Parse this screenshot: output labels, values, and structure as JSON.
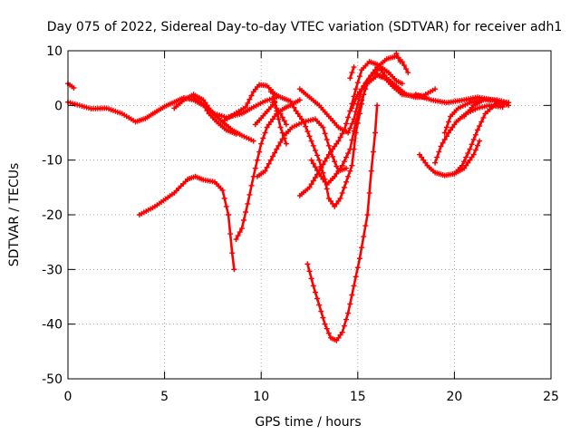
{
  "chart_data": {
    "type": "scatter",
    "title": "Day 075 of 2022, Sidereal Day-to-day VTEC variation (SDTVAR) for receiver adh1",
    "xlabel": "GPS time / hours",
    "ylabel": "SDTVAR / TECUs",
    "xlim": [
      0,
      25
    ],
    "ylim": [
      -50,
      10
    ],
    "xticks": [
      0,
      5,
      10,
      15,
      20,
      25
    ],
    "yticks": [
      10,
      0,
      -10,
      -20,
      -30,
      -40,
      -50
    ],
    "xtick_labels": [
      "0",
      "5",
      "10",
      "15",
      "20",
      "25"
    ],
    "ytick_labels": [
      "10",
      "0",
      "-10",
      "-20",
      "-30",
      "-40",
      "-50"
    ],
    "grid": true,
    "legend": "none",
    "marker": "plus",
    "color": "#ff0000",
    "series": [
      {
        "points": [
          [
            0.0,
            4.0
          ],
          [
            0.3,
            3.2
          ]
        ]
      },
      {
        "points": [
          [
            0.0,
            0.6
          ],
          [
            0.6,
            0.0
          ],
          [
            1.2,
            -0.6
          ],
          [
            2.0,
            -0.5
          ],
          [
            2.8,
            -1.5
          ],
          [
            3.5,
            -3.0
          ],
          [
            4.0,
            -2.4
          ],
          [
            4.5,
            -1.3
          ],
          [
            5.0,
            -0.2
          ],
          [
            5.5,
            0.6
          ],
          [
            6.0,
            1.4
          ],
          [
            6.5,
            1.0
          ],
          [
            7.0,
            0.0
          ],
          [
            7.6,
            -1.5
          ],
          [
            8.2,
            -2.2
          ],
          [
            9.0,
            -1.5
          ],
          [
            9.5,
            -0.5
          ],
          [
            10.2,
            0.8
          ],
          [
            10.8,
            1.5
          ]
        ]
      }
    ],
    "series_more": [
      {
        "points": [
          [
            3.7,
            -20.0
          ],
          [
            4.5,
            -18.5
          ],
          [
            5.5,
            -16.0
          ],
          [
            6.2,
            -13.5
          ],
          [
            6.6,
            -13.0
          ],
          [
            7.0,
            -13.6
          ],
          [
            7.6,
            -14.0
          ],
          [
            8.0,
            -15.5
          ],
          [
            8.3,
            -20.0
          ],
          [
            8.5,
            -27.0
          ],
          [
            8.6,
            -30.0
          ]
        ]
      },
      {
        "points": [
          [
            8.7,
            -24.5
          ],
          [
            9.0,
            -22.5
          ],
          [
            9.3,
            -18.0
          ],
          [
            9.6,
            -13.0
          ],
          [
            9.8,
            -10.0
          ],
          [
            10.0,
            -7.0
          ],
          [
            10.3,
            -4.0
          ],
          [
            10.8,
            -1.5
          ],
          [
            11.2,
            -0.5
          ],
          [
            11.5,
            0.0
          ],
          [
            12.0,
            1.0
          ]
        ]
      },
      {
        "points": [
          [
            5.5,
            -0.5
          ],
          [
            6.0,
            1.0
          ],
          [
            6.5,
            2.0
          ],
          [
            7.0,
            1.0
          ],
          [
            7.5,
            -1.5
          ],
          [
            8.0,
            -3.0
          ],
          [
            8.5,
            -4.5
          ],
          [
            9.0,
            -5.5
          ],
          [
            9.6,
            -6.5
          ]
        ]
      },
      {
        "points": [
          [
            6.5,
            1.5
          ],
          [
            7.0,
            0.2
          ],
          [
            7.3,
            -1.5
          ],
          [
            7.7,
            -3.0
          ],
          [
            8.2,
            -4.5
          ],
          [
            8.7,
            -5.2
          ]
        ]
      },
      {
        "points": [
          [
            8.0,
            -3.0
          ],
          [
            8.6,
            -1.6
          ],
          [
            9.2,
            -0.3
          ],
          [
            9.6,
            2.5
          ],
          [
            9.9,
            3.8
          ],
          [
            10.3,
            3.6
          ],
          [
            10.6,
            2.5
          ],
          [
            10.8,
            -1.0
          ],
          [
            11.0,
            -4.0
          ],
          [
            11.3,
            -7.0
          ]
        ]
      },
      {
        "points": [
          [
            9.8,
            -13.0
          ],
          [
            10.2,
            -12.0
          ],
          [
            10.5,
            -10.0
          ],
          [
            10.8,
            -8.0
          ],
          [
            11.2,
            -5.5
          ],
          [
            11.6,
            -4.0
          ],
          [
            12.2,
            -3.0
          ],
          [
            12.8,
            -2.5
          ],
          [
            13.2,
            -4.0
          ],
          [
            13.6,
            -8.5
          ],
          [
            14.0,
            -12.0
          ],
          [
            14.4,
            -11.5
          ]
        ]
      },
      {
        "points": [
          [
            10.5,
            2.5
          ],
          [
            11.0,
            1.5
          ],
          [
            11.5,
            0.8
          ],
          [
            11.8,
            -1.0
          ],
          [
            12.2,
            -3.0
          ],
          [
            12.6,
            -6.5
          ],
          [
            13.0,
            -10.0
          ],
          [
            13.3,
            -13.5
          ],
          [
            13.5,
            -17.0
          ],
          [
            13.8,
            -18.5
          ],
          [
            14.1,
            -17.0
          ],
          [
            14.4,
            -14.0
          ],
          [
            14.7,
            -11.0
          ],
          [
            14.9,
            -5.0
          ],
          [
            15.3,
            2.0
          ]
        ]
      },
      {
        "points": [
          [
            10.6,
            0.5
          ],
          [
            11.0,
            -1.5
          ],
          [
            11.3,
            -3.5
          ]
        ]
      },
      {
        "points": [
          [
            9.7,
            -3.5
          ],
          [
            10.2,
            -1.5
          ],
          [
            10.7,
            0.5
          ]
        ]
      },
      {
        "points": [
          [
            12.0,
            3.0
          ],
          [
            12.5,
            1.5
          ],
          [
            13.0,
            0.0
          ],
          [
            13.5,
            -2.0
          ],
          [
            14.0,
            -4.0
          ],
          [
            14.5,
            -5.0
          ],
          [
            14.8,
            -2.5
          ],
          [
            15.2,
            3.0
          ],
          [
            15.8,
            6.0
          ],
          [
            16.5,
            5.0
          ],
          [
            17.0,
            3.5
          ],
          [
            17.5,
            2.0
          ],
          [
            18.0,
            1.5
          ],
          [
            18.5,
            1.5
          ]
        ]
      },
      {
        "points": [
          [
            12.0,
            -16.5
          ],
          [
            12.5,
            -15.0
          ],
          [
            13.0,
            -12.0
          ],
          [
            13.5,
            -9.0
          ],
          [
            14.0,
            -6.5
          ],
          [
            14.3,
            -4.5
          ],
          [
            14.6,
            -1.0
          ],
          [
            14.9,
            3.0
          ],
          [
            15.2,
            6.5
          ],
          [
            15.6,
            8.0
          ],
          [
            16.0,
            7.5
          ],
          [
            16.5,
            5.0
          ],
          [
            17.0,
            3.5
          ]
        ]
      },
      {
        "points": [
          [
            12.4,
            -29.0
          ],
          [
            12.7,
            -33.0
          ],
          [
            13.0,
            -36.5
          ],
          [
            13.3,
            -40.0
          ],
          [
            13.6,
            -42.5
          ],
          [
            13.9,
            -43.0
          ],
          [
            14.2,
            -41.5
          ],
          [
            14.5,
            -38.0
          ],
          [
            14.8,
            -33.0
          ],
          [
            15.1,
            -28.0
          ],
          [
            15.3,
            -24.0
          ],
          [
            15.5,
            -20.0
          ],
          [
            15.7,
            -12.0
          ],
          [
            15.9,
            -5.0
          ],
          [
            16.0,
            0.0
          ]
        ]
      },
      {
        "points": [
          [
            12.6,
            -10.0
          ],
          [
            13.0,
            -12.5
          ],
          [
            13.4,
            -14.5
          ],
          [
            13.8,
            -13.0
          ],
          [
            14.2,
            -11.0
          ],
          [
            14.6,
            -8.0
          ],
          [
            14.9,
            -3.0
          ],
          [
            15.2,
            1.0
          ],
          [
            15.5,
            4.0
          ],
          [
            16.0,
            5.5
          ],
          [
            16.4,
            5.0
          ],
          [
            16.8,
            3.5
          ],
          [
            17.3,
            2.0
          ],
          [
            17.8,
            1.8
          ],
          [
            18.4,
            1.8
          ],
          [
            19.0,
            3.0
          ]
        ]
      },
      {
        "points": [
          [
            14.7,
            -0.5
          ],
          [
            15.0,
            2.0
          ],
          [
            15.5,
            4.5
          ],
          [
            16.0,
            7.0
          ],
          [
            16.5,
            8.5
          ],
          [
            17.0,
            9.0
          ],
          [
            17.3,
            8.0
          ],
          [
            17.6,
            6.0
          ]
        ]
      },
      {
        "points": [
          [
            15.3,
            3.0
          ],
          [
            15.7,
            5.5
          ],
          [
            16.2,
            7.0
          ],
          [
            16.6,
            6.0
          ],
          [
            17.0,
            4.5
          ],
          [
            17.3,
            4.0
          ]
        ]
      },
      {
        "points": [
          [
            17.0,
            9.5
          ],
          [
            17.2,
            8.0
          ]
        ]
      },
      {
        "points": [
          [
            14.6,
            5.0
          ],
          [
            14.8,
            7.0
          ]
        ]
      },
      {
        "points": [
          [
            18.0,
            2.0
          ],
          [
            18.8,
            1.0
          ],
          [
            19.6,
            0.5
          ],
          [
            20.5,
            1.0
          ],
          [
            21.2,
            1.5
          ],
          [
            22.0,
            1.0
          ],
          [
            22.8,
            0.0
          ]
        ]
      },
      {
        "points": [
          [
            18.2,
            -9.0
          ],
          [
            18.6,
            -11.0
          ],
          [
            19.0,
            -12.3
          ],
          [
            19.5,
            -12.8
          ],
          [
            20.0,
            -12.5
          ],
          [
            20.4,
            -11.0
          ],
          [
            20.8,
            -8.0
          ],
          [
            21.2,
            -4.5
          ],
          [
            21.6,
            -1.5
          ],
          [
            22.2,
            0.5
          ],
          [
            22.8,
            0.5
          ]
        ]
      },
      {
        "points": [
          [
            19.0,
            -10.5
          ],
          [
            19.3,
            -7.5
          ],
          [
            19.7,
            -5.0
          ],
          [
            20.1,
            -3.0
          ],
          [
            20.6,
            -1.5
          ],
          [
            21.2,
            -0.5
          ],
          [
            21.8,
            0.0
          ],
          [
            22.5,
            -0.3
          ]
        ]
      },
      {
        "points": [
          [
            19.5,
            -5.0
          ],
          [
            19.8,
            -2.0
          ],
          [
            20.2,
            -0.5
          ],
          [
            20.8,
            0.5
          ],
          [
            21.5,
            1.0
          ],
          [
            22.2,
            1.0
          ],
          [
            22.8,
            0.5
          ]
        ]
      },
      {
        "points": [
          [
            20.0,
            -12.5
          ],
          [
            20.5,
            -11.5
          ],
          [
            21.0,
            -9.0
          ],
          [
            21.3,
            -6.5
          ]
        ]
      },
      {
        "points": [
          [
            20.5,
            -2.0
          ],
          [
            21.0,
            0.0
          ],
          [
            21.5,
            1.0
          ]
        ]
      }
    ]
  }
}
